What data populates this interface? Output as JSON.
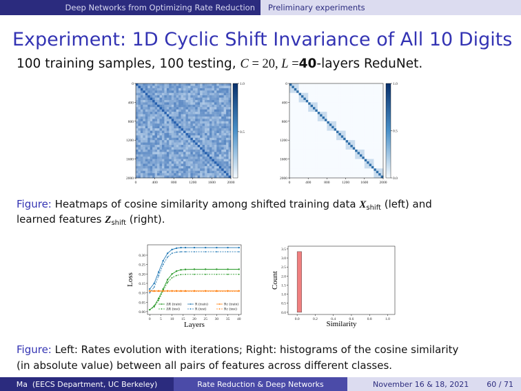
{
  "header": {
    "section": "Deep Networks from Optimizing Rate Reduction",
    "subsection": "Preliminary experiments"
  },
  "title": "Experiment: 1D Cyclic Shift Invariance of All 10 Digits",
  "subtitle": [
    "100 training samples, 100 testing, ",
    "C",
    " = 20, ",
    "L",
    " =",
    "40",
    "-layers ReduNet."
  ],
  "caption_1": {
    "label": "Figure:",
    "line_1": [
      " Heatmaps of cosine similarity among shifted training data ",
      "X",
      "shift",
      " (left) and"
    ],
    "line_2": [
      "learned features ",
      "Z",
      "shift",
      " (right)."
    ]
  },
  "caption_2": {
    "label": "Figure:",
    "line_1": " Left: Rates evolution with iterations; Right: histograms of the cosine similarity",
    "line_2": "(in absolute value) between all pairs of features across different classes."
  },
  "chart_data": [
    {
      "type": "heatmap",
      "xlim": [
        0,
        2000
      ],
      "ylim": [
        0,
        2000
      ],
      "xticks": [
        0,
        400,
        800,
        1200,
        1600,
        2000
      ],
      "yticks": [
        0,
        400,
        800,
        1200,
        1600,
        2000
      ],
      "clim": [
        0.02,
        1
      ],
      "cticks": [
        {
          "value": 1,
          "label": "1.0"
        },
        {
          "value": 0.5,
          "label": "0.5"
        }
      ]
    },
    {
      "type": "heatmap",
      "xlim": [
        0,
        2000
      ],
      "ylim": [
        0,
        2000
      ],
      "xticks": [
        0,
        400,
        800,
        1200,
        1600,
        2000
      ],
      "yticks": [
        0,
        400,
        800,
        1200,
        1600,
        2000
      ],
      "clim": [
        0,
        1
      ],
      "cticks": [
        {
          "value": 1,
          "label": "1.0"
        },
        {
          "value": 0.5,
          "label": "0.5"
        },
        {
          "value": 0,
          "label": "0.0"
        }
      ]
    },
    {
      "type": "line",
      "x_label": "Layers",
      "y_label": "Loss",
      "legend": "lower right",
      "x": [
        0,
        2,
        4,
        6,
        8,
        10,
        12,
        14,
        16,
        20,
        25,
        30,
        35,
        40
      ],
      "xlim": [
        -1,
        41
      ],
      "ylim": [
        -0.015,
        0.355
      ],
      "xticks": [
        0,
        5,
        10,
        15,
        20,
        25,
        30,
        35,
        40
      ],
      "yticks": [
        {
          "value": 0,
          "label": "0.00"
        },
        {
          "value": 0.05,
          "label": "0.05"
        },
        {
          "value": 0.1,
          "label": "0.10"
        },
        {
          "value": 0.15,
          "label": "0.15"
        },
        {
          "value": 0.2,
          "label": "0.20"
        },
        {
          "value": 0.25,
          "label": "0.25"
        },
        {
          "value": 0.3,
          "label": "0.30"
        }
      ],
      "series": [
        {
          "name": "ΔR (train)",
          "color": "#2a9a2a",
          "dash": false,
          "values": [
            0.01,
            0.03,
            0.07,
            0.12,
            0.17,
            0.2,
            0.215,
            0.222,
            0.224,
            0.225,
            0.225,
            0.225,
            0.225,
            0.225
          ]
        },
        {
          "name": "ΔR (test)",
          "color": "#2a9a2a",
          "dash": true,
          "values": [
            0.01,
            0.025,
            0.06,
            0.11,
            0.155,
            0.18,
            0.192,
            0.197,
            0.198,
            0.198,
            0.198,
            0.198,
            0.198,
            0.198
          ]
        },
        {
          "name": "R (train)",
          "color": "#1f77b4",
          "dash": false,
          "values": [
            0.12,
            0.15,
            0.21,
            0.27,
            0.31,
            0.33,
            0.337,
            0.34,
            0.34,
            0.34,
            0.34,
            0.34,
            0.34,
            0.34
          ]
        },
        {
          "name": "R (test)",
          "color": "#1f77b4",
          "dash": true,
          "values": [
            0.1,
            0.13,
            0.19,
            0.25,
            0.29,
            0.31,
            0.316,
            0.318,
            0.318,
            0.318,
            0.318,
            0.318,
            0.318,
            0.318
          ]
        },
        {
          "name": "Rc (train)",
          "color": "#ff7f0e",
          "dash": false,
          "values": [
            0.11,
            0.11,
            0.11,
            0.11,
            0.11,
            0.11,
            0.11,
            0.11,
            0.11,
            0.11,
            0.11,
            0.11,
            0.11,
            0.11
          ]
        },
        {
          "name": "Rc (test)",
          "color": "#ff7f0e",
          "dash": true,
          "values": [
            0.108,
            0.108,
            0.108,
            0.108,
            0.108,
            0.108,
            0.108,
            0.108,
            0.108,
            0.108,
            0.108,
            0.108,
            0.108,
            0.108
          ]
        }
      ]
    },
    {
      "type": "histogram",
      "x_label": "Similarity",
      "y_label": "Count",
      "color": "#f08080",
      "bins": [
        0,
        0.05,
        0.1,
        0.15,
        0.2,
        0.25,
        0.3,
        0.35,
        0.4,
        0.45,
        0.5,
        0.55,
        0.6,
        0.65,
        0.7,
        0.75,
        0.8,
        0.85,
        0.9,
        0.95,
        1
      ],
      "values": [
        3.35,
        0,
        0,
        0,
        0,
        0,
        0,
        0,
        0,
        0,
        0,
        0,
        0,
        0,
        0,
        0,
        0,
        0,
        0,
        0
      ],
      "xlim": [
        -0.1,
        1.08
      ],
      "ylim": [
        -0.12,
        3.65
      ],
      "xticks": [
        {
          "value": 0,
          "label": "0.0"
        },
        {
          "value": 0.2,
          "label": "0.2"
        },
        {
          "value": 0.4,
          "label": "0.4"
        },
        {
          "value": 0.6,
          "label": "0.6"
        },
        {
          "value": 0.8,
          "label": "0.8"
        },
        {
          "value": 1,
          "label": "1.0"
        }
      ],
      "yticks": [
        {
          "value": 0,
          "label": "0.0"
        },
        {
          "value": 0.5,
          "label": "0.5"
        },
        {
          "value": 1,
          "label": "1.0"
        },
        {
          "value": 1.5,
          "label": "1.5"
        },
        {
          "value": 2,
          "label": "2.0"
        },
        {
          "value": 2.5,
          "label": "2.5"
        },
        {
          "value": 3,
          "label": "3.0"
        },
        {
          "value": 3.5,
          "label": "3.5"
        }
      ]
    }
  ],
  "footer": {
    "author": "Ma  (EECS Department, UC Berkeley)",
    "short_title": "Rate Reduction & Deep Networks",
    "date": "November 16 & 18, 2021",
    "page": "60 / 71"
  }
}
